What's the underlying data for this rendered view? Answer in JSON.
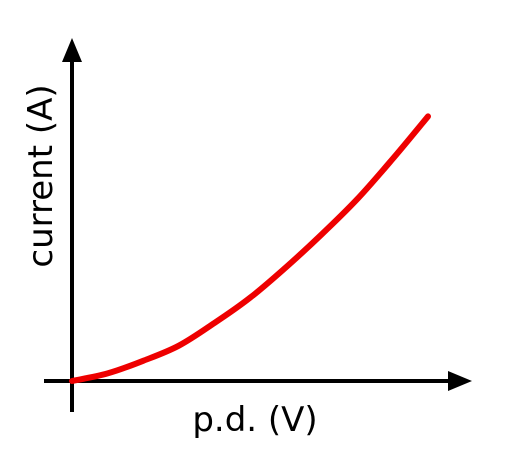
{
  "chart_data": {
    "type": "line",
    "title": "",
    "xlabel": "p.d. (V)",
    "ylabel": "current (A)",
    "grid": false,
    "legend": "none",
    "xlim": [
      0,
      10
    ],
    "ylim": [
      0,
      10
    ],
    "series": [
      {
        "color": "#ee0000",
        "x": [
          0,
          1,
          2,
          3,
          4,
          5,
          6,
          7,
          8,
          9,
          10
        ],
        "y": [
          0,
          0.3,
          0.8,
          1.4,
          2.3,
          3.3,
          4.5,
          5.8,
          7.2,
          8.8,
          10.5
        ]
      }
    ]
  }
}
